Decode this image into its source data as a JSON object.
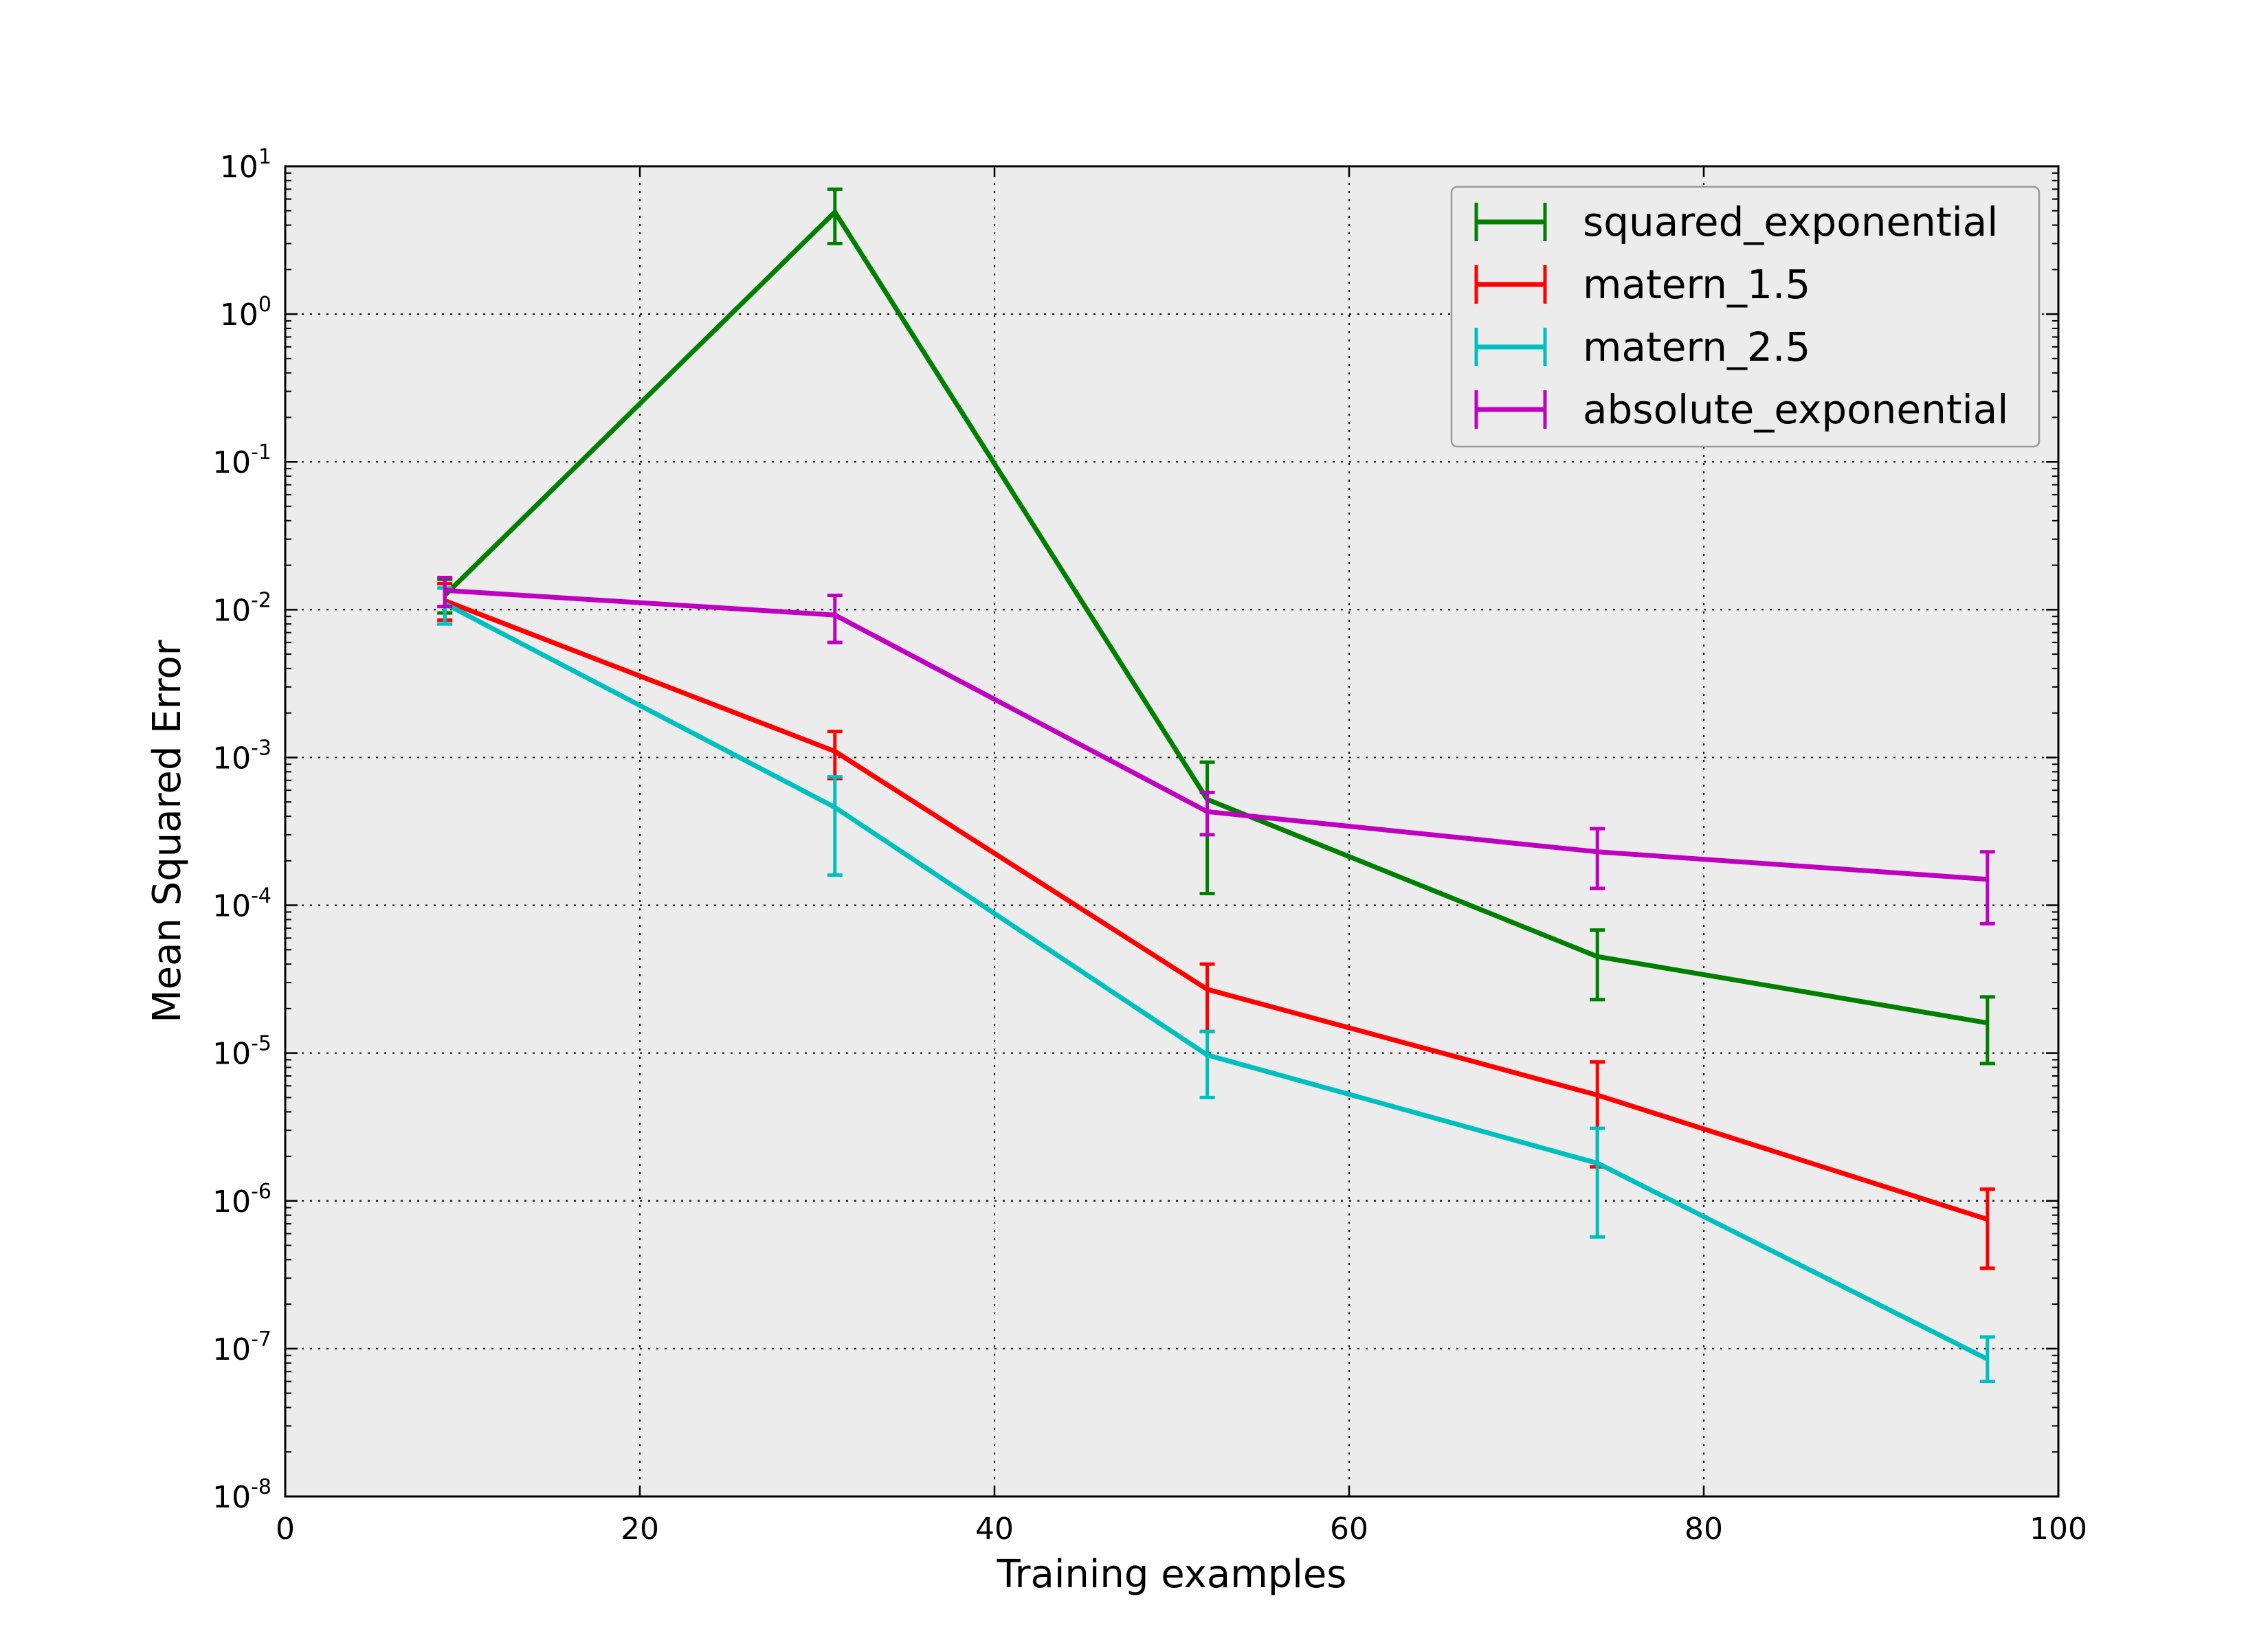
{
  "chart_data": {
    "type": "line",
    "title": "",
    "xlabel": "Training examples",
    "ylabel": "Mean Squared Error",
    "xlim": [
      0,
      100
    ],
    "ylim": [
      1e-08,
      10
    ],
    "yscale": "log",
    "grid": true,
    "legend_position": "top-right",
    "background": "#ececec",
    "x_ticks": [
      0,
      20,
      40,
      60,
      80,
      100
    ],
    "x_tick_labels": [
      "0",
      "20",
      "40",
      "60",
      "80",
      "100"
    ],
    "y_ticks": [
      1e-08,
      1e-07,
      1e-06,
      1e-05,
      0.0001,
      0.001,
      0.01,
      0.1,
      1,
      10
    ],
    "y_tick_labels": [
      {
        "base": "10",
        "exp": "-8"
      },
      {
        "base": "10",
        "exp": "-7"
      },
      {
        "base": "10",
        "exp": "-6"
      },
      {
        "base": "10",
        "exp": "-5"
      },
      {
        "base": "10",
        "exp": "-4"
      },
      {
        "base": "10",
        "exp": "-3"
      },
      {
        "base": "10",
        "exp": "-2"
      },
      {
        "base": "10",
        "exp": "-1"
      },
      {
        "base": "10",
        "exp": "0"
      },
      {
        "base": "10",
        "exp": "1"
      }
    ],
    "x": [
      9,
      31,
      52,
      74,
      96
    ],
    "series": [
      {
        "name": "squared_exponential",
        "color": "#007f00",
        "values": [
          0.0125,
          4.9,
          0.00052,
          4.5e-05,
          1.6e-05
        ],
        "err_low": [
          0.0095,
          3.0,
          0.00012,
          2.3e-05,
          8.5e-06
        ],
        "err_high": [
          0.016,
          7.0,
          0.00093,
          6.8e-05,
          2.4e-05
        ]
      },
      {
        "name": "matern_1.5",
        "color": "#ff0000",
        "values": [
          0.0115,
          0.0011,
          2.7e-05,
          5.2e-06,
          7.5e-07
        ],
        "err_low": [
          0.0085,
          0.00072,
          1.4e-05,
          1.7e-06,
          3.5e-07
        ],
        "err_high": [
          0.015,
          0.0015,
          4e-05,
          8.7e-06,
          1.2e-06
        ]
      },
      {
        "name": "matern_2.5",
        "color": "#00bfbf",
        "values": [
          0.011,
          0.00046,
          9.7e-06,
          1.8e-06,
          8.5e-08
        ],
        "err_low": [
          0.008,
          0.00016,
          5e-06,
          5.7e-07,
          6e-08
        ],
        "err_high": [
          0.014,
          0.00074,
          1.4e-05,
          3.1e-06,
          1.2e-07
        ]
      },
      {
        "name": "absolute_exponential",
        "color": "#bf00bf",
        "values": [
          0.0135,
          0.0092,
          0.00043,
          0.00023,
          0.00015
        ],
        "err_low": [
          0.0105,
          0.006,
          0.0003,
          0.00013,
          7.5e-05
        ],
        "err_high": [
          0.0165,
          0.0125,
          0.00058,
          0.00033,
          0.00023
        ]
      }
    ]
  }
}
